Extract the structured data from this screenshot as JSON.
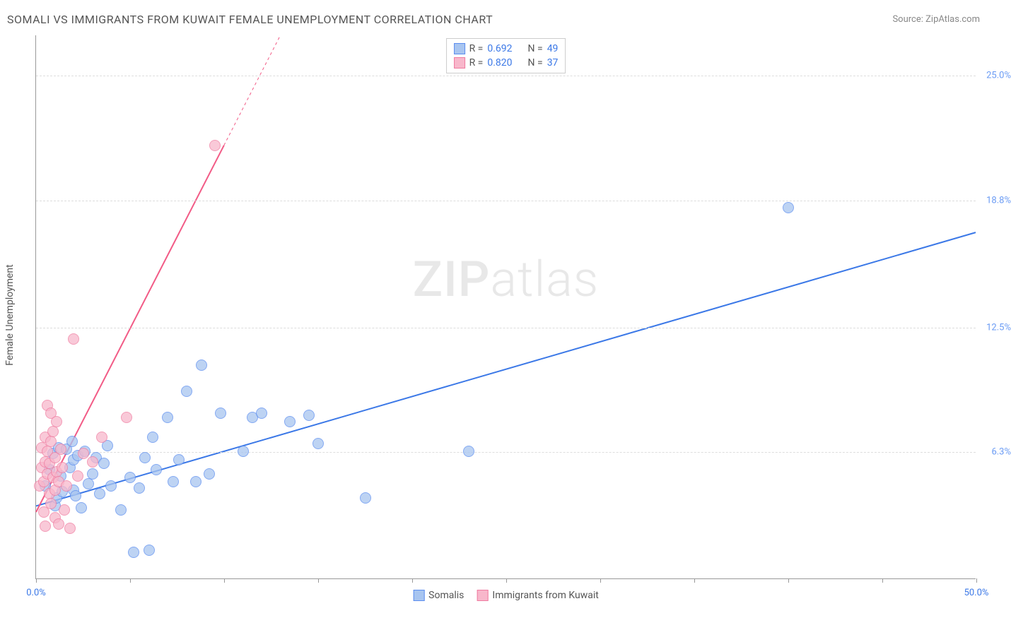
{
  "chart": {
    "type": "scatter",
    "title": "SOMALI VS IMMIGRANTS FROM KUWAIT FEMALE UNEMPLOYMENT CORRELATION CHART",
    "source_label": "Source:",
    "source_name": "ZipAtlas.com",
    "y_axis_label": "Female Unemployment",
    "watermark_bold": "ZIP",
    "watermark_light": "atlas",
    "background_color": "#ffffff",
    "grid_color": "#dddddd",
    "axis_color": "#999999",
    "xlim": [
      0,
      50
    ],
    "ylim": [
      0,
      27
    ],
    "x_ticks": [
      0,
      5,
      10,
      15,
      20,
      25,
      30,
      35,
      40,
      45,
      50
    ],
    "x_tick_labels": {
      "0": "0.0%",
      "50": "50.0%"
    },
    "x_tick_label_color": "#3b78e7",
    "y_ticks": [
      6.3,
      12.5,
      18.8,
      25.0
    ],
    "y_tick_labels": [
      "6.3%",
      "12.5%",
      "18.8%",
      "25.0%"
    ],
    "y_tick_label_color": "#6a9bf4",
    "marker_radius": 8,
    "marker_fill_opacity": 0.35,
    "series": [
      {
        "name": "Somalis",
        "color": "#3b78e7",
        "fill": "#a8c5f0",
        "stroke": "#5b8def",
        "r": 0.692,
        "n": 49,
        "trend": {
          "x1": 0,
          "y1": 3.6,
          "x2": 50,
          "y2": 17.2,
          "width": 2,
          "dashed_after_x": null
        },
        "points": [
          [
            0.5,
            4.6
          ],
          [
            0.7,
            5.4
          ],
          [
            0.9,
            6.2
          ],
          [
            1.0,
            3.6
          ],
          [
            1.1,
            4.0
          ],
          [
            1.2,
            6.5
          ],
          [
            1.3,
            5.1
          ],
          [
            1.4,
            4.3
          ],
          [
            1.6,
            6.4
          ],
          [
            1.8,
            5.5
          ],
          [
            1.9,
            6.8
          ],
          [
            2.0,
            4.4
          ],
          [
            2.0,
            5.9
          ],
          [
            2.1,
            4.1
          ],
          [
            2.2,
            6.1
          ],
          [
            2.4,
            3.5
          ],
          [
            2.6,
            6.3
          ],
          [
            2.8,
            4.7
          ],
          [
            3.0,
            5.2
          ],
          [
            3.2,
            6.0
          ],
          [
            3.4,
            4.2
          ],
          [
            3.6,
            5.7
          ],
          [
            3.8,
            6.6
          ],
          [
            4.0,
            4.6
          ],
          [
            4.5,
            3.4
          ],
          [
            5.0,
            5.0
          ],
          [
            5.2,
            1.3
          ],
          [
            5.5,
            4.5
          ],
          [
            5.8,
            6.0
          ],
          [
            6.0,
            1.4
          ],
          [
            6.2,
            7.0
          ],
          [
            6.4,
            5.4
          ],
          [
            7.0,
            8.0
          ],
          [
            7.3,
            4.8
          ],
          [
            7.6,
            5.9
          ],
          [
            8.0,
            9.3
          ],
          [
            8.5,
            4.8
          ],
          [
            8.8,
            10.6
          ],
          [
            9.2,
            5.2
          ],
          [
            9.8,
            8.2
          ],
          [
            11.0,
            6.3
          ],
          [
            11.5,
            8.0
          ],
          [
            12.0,
            8.2
          ],
          [
            13.5,
            7.8
          ],
          [
            14.5,
            8.1
          ],
          [
            15.0,
            6.7
          ],
          [
            17.5,
            4.0
          ],
          [
            23.0,
            6.3
          ],
          [
            40.0,
            18.4
          ]
        ]
      },
      {
        "name": "Immigrants from Kuwait",
        "color": "#f25b86",
        "fill": "#f8b7cb",
        "stroke": "#ef7ba0",
        "r": 0.82,
        "n": 37,
        "trend": {
          "x1": 0,
          "y1": 3.3,
          "x2": 13,
          "y2": 27,
          "width": 2,
          "dashed_after_x": 10.0
        },
        "points": [
          [
            0.2,
            4.6
          ],
          [
            0.3,
            5.5
          ],
          [
            0.3,
            6.5
          ],
          [
            0.4,
            3.3
          ],
          [
            0.4,
            4.8
          ],
          [
            0.5,
            7.0
          ],
          [
            0.5,
            5.8
          ],
          [
            0.5,
            2.6
          ],
          [
            0.6,
            5.2
          ],
          [
            0.6,
            6.3
          ],
          [
            0.6,
            8.6
          ],
          [
            0.7,
            4.2
          ],
          [
            0.7,
            5.7
          ],
          [
            0.8,
            3.7
          ],
          [
            0.8,
            6.8
          ],
          [
            0.8,
            8.2
          ],
          [
            0.9,
            5.0
          ],
          [
            0.9,
            7.3
          ],
          [
            1.0,
            4.4
          ],
          [
            1.0,
            6.0
          ],
          [
            1.0,
            3.0
          ],
          [
            1.1,
            5.3
          ],
          [
            1.1,
            7.8
          ],
          [
            1.2,
            4.8
          ],
          [
            1.2,
            2.7
          ],
          [
            1.3,
            6.4
          ],
          [
            1.4,
            5.5
          ],
          [
            1.5,
            3.4
          ],
          [
            1.6,
            4.6
          ],
          [
            1.8,
            2.5
          ],
          [
            2.0,
            11.9
          ],
          [
            2.2,
            5.1
          ],
          [
            2.5,
            6.2
          ],
          [
            3.0,
            5.8
          ],
          [
            3.5,
            7.0
          ],
          [
            4.8,
            8.0
          ],
          [
            9.5,
            21.5
          ]
        ]
      }
    ],
    "legend_top": {
      "r_label": "R =",
      "n_label": "N =",
      "text_color": "#555555",
      "value_color": "#3b78e7"
    },
    "legend_bottom": {
      "items": [
        "Somalis",
        "Immigrants from Kuwait"
      ]
    }
  }
}
